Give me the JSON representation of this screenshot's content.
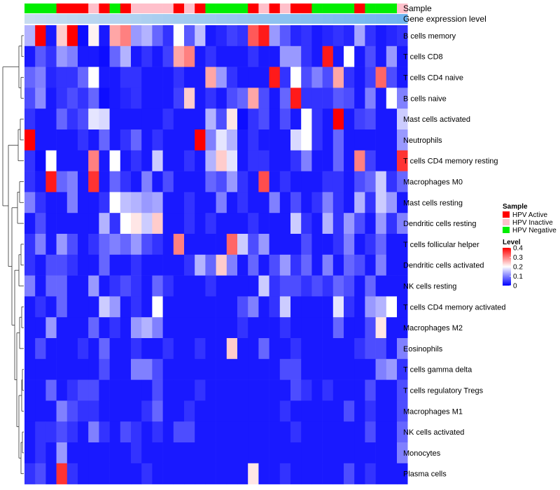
{
  "chart_data": {
    "type": "heatmap",
    "rows": [
      "B cells memory",
      "T cells CD8",
      "T cells CD4 naive",
      "B cells naive",
      "Mast cells activated",
      "Neutrophils",
      "T cells CD4 memory resting",
      "Macrophages M0",
      "Mast cells resting",
      "Dendritic cells resting",
      "T cells follicular helper",
      "Dendritic cells activated",
      "NK cells resting",
      "T cells CD4 memory activated",
      "Macrophages M2",
      "Eosinophils",
      "T cells gamma delta",
      "T cells regulatory  Tregs",
      "Macrophages M1",
      "NK cells activated",
      "Monocytes",
      "Plasma cells"
    ],
    "n_columns": 36,
    "annotation_rows": [
      "Sample",
      "Gene expression level"
    ],
    "sample_annotation": [
      "HPV Negative",
      "HPV Negative",
      "HPV Negative",
      "HPV Active",
      "HPV Active",
      "HPV Active",
      "HPV Inactive",
      "HPV Active",
      "HPV Negative",
      "HPV Active",
      "HPV Inactive",
      "HPV Inactive",
      "HPV Inactive",
      "HPV Inactive",
      "HPV Active",
      "HPV Inactive",
      "HPV Active",
      "HPV Negative",
      "HPV Negative",
      "HPV Negative",
      "HPV Negative",
      "HPV Active",
      "HPV Inactive",
      "HPV Active",
      "HPV Inactive",
      "HPV Active",
      "HPV Active",
      "HPV Negative",
      "HPV Negative",
      "HPV Negative",
      "HPV Negative",
      "HPV Active",
      "HPV Negative",
      "HPV Negative",
      "HPV Negative",
      "HPV Inactive"
    ],
    "legend": {
      "sample_title": "Sample",
      "sample_entries": [
        {
          "label": "HPV Active",
          "color": "#ff0000"
        },
        {
          "label": "HPV Inactive",
          "color": "#ffc0cb"
        },
        {
          "label": "HPV Negative",
          "color": "#00ee00"
        }
      ],
      "level_title": "Level",
      "level_ticks": [
        "0.4",
        "0.3",
        "0.2",
        "0.1",
        "0"
      ],
      "placement": "right"
    },
    "color_scale": {
      "low": "#0000ff",
      "mid": "#ffffff",
      "high": "#ff0000",
      "min": 0,
      "max": 0.4
    },
    "values": [
      [
        0.14,
        0.4,
        0.02,
        0.24,
        0.4,
        0.01,
        0.21,
        0.02,
        0.27,
        0.3,
        0.12,
        0.14,
        0.08,
        0.04,
        0.2,
        0.07,
        0.15,
        0.02,
        0.03,
        0.05,
        0.04,
        0.33,
        0.38,
        0.12,
        0.07,
        0.03,
        0.04,
        0.02,
        0.03,
        0.04,
        0.03,
        0.13,
        0.04,
        0.02,
        0.03,
        0.04
      ],
      [
        0.02,
        0.07,
        0.04,
        0.12,
        0.1,
        0.02,
        0.02,
        0.01,
        0.08,
        0.14,
        0.02,
        0.04,
        0.02,
        0.05,
        0.27,
        0.3,
        0.02,
        0.04,
        0.02,
        0.02,
        0.02,
        0.04,
        0.02,
        0.02,
        0.12,
        0.12,
        0.04,
        0.02,
        0.38,
        0.02,
        0.2,
        0.02,
        0.06,
        0.02,
        0.12,
        0.02
      ],
      [
        0.08,
        0.1,
        0.03,
        0.04,
        0.04,
        0.08,
        0.2,
        0.02,
        0.02,
        0.04,
        0.04,
        0.02,
        0.02,
        0.02,
        0.04,
        0.02,
        0.02,
        0.27,
        0.12,
        0.04,
        0.02,
        0.02,
        0.02,
        0.38,
        0.04,
        0.2,
        0.06,
        0.1,
        0.06,
        0.27,
        0.04,
        0.02,
        0.05,
        0.32,
        0.06,
        0.02
      ],
      [
        0.06,
        0.11,
        0.02,
        0.04,
        0.06,
        0.04,
        0.08,
        0.01,
        0.02,
        0.03,
        0.04,
        0.02,
        0.02,
        0.02,
        0.05,
        0.24,
        0.02,
        0.04,
        0.02,
        0.06,
        0.08,
        0.27,
        0.06,
        0.02,
        0.08,
        0.38,
        0.04,
        0.04,
        0.04,
        0.07,
        0.06,
        0.02,
        0.1,
        0.02,
        0.2,
        0.1
      ],
      [
        0.04,
        0.02,
        0.02,
        0.08,
        0.04,
        0.06,
        0.18,
        0.17,
        0.02,
        0.02,
        0.02,
        0.02,
        0.02,
        0.04,
        0.02,
        0.02,
        0.02,
        0.14,
        0.06,
        0.22,
        0.01,
        0.04,
        0.06,
        0.02,
        0.06,
        0.02,
        0.2,
        0.04,
        0.02,
        0.4,
        0.02,
        0.05,
        0.06,
        0.02,
        0.02,
        0.16
      ],
      [
        0.4,
        0.02,
        0.02,
        0.02,
        0.02,
        0.04,
        0.02,
        0.08,
        0.02,
        0.04,
        0.08,
        0.02,
        0.04,
        0.02,
        0.02,
        0.02,
        0.4,
        0.1,
        0.18,
        0.14,
        0.02,
        0.04,
        0.02,
        0.02,
        0.02,
        0.17,
        0.2,
        0.04,
        0.02,
        0.08,
        0.02,
        0.02,
        0.02,
        0.02,
        0.02,
        0.12
      ],
      [
        0.04,
        0.01,
        0.2,
        0.02,
        0.02,
        0.02,
        0.3,
        0.02,
        0.2,
        0.02,
        0.04,
        0.02,
        0.16,
        0.02,
        0.02,
        0.04,
        0.02,
        0.14,
        0.24,
        0.18,
        0.02,
        0.04,
        0.04,
        0.02,
        0.02,
        0.04,
        0.1,
        0.02,
        0.02,
        0.08,
        0.02,
        0.3,
        0.05,
        0.02,
        0.02,
        0.36
      ],
      [
        0.04,
        0.02,
        0.38,
        0.08,
        0.1,
        0.02,
        0.36,
        0.02,
        0.08,
        0.04,
        0.02,
        0.1,
        0.02,
        0.06,
        0.02,
        0.02,
        0.02,
        0.08,
        0.06,
        0.12,
        0.04,
        0.02,
        0.34,
        0.02,
        0.04,
        0.02,
        0.02,
        0.02,
        0.04,
        0.04,
        0.02,
        0.06,
        0.08,
        0.16,
        0.04,
        0.08
      ],
      [
        0.1,
        0.04,
        0.02,
        0.02,
        0.1,
        0.02,
        0.02,
        0.04,
        0.2,
        0.15,
        0.14,
        0.12,
        0.13,
        0.02,
        0.02,
        0.04,
        0.02,
        0.02,
        0.1,
        0.02,
        0.04,
        0.02,
        0.02,
        0.1,
        0.02,
        0.06,
        0.02,
        0.04,
        0.1,
        0.04,
        0.02,
        0.14,
        0.04,
        0.16,
        0.12,
        0.02
      ],
      [
        0.02,
        0.06,
        0.02,
        0.02,
        0.02,
        0.02,
        0.02,
        0.14,
        0.04,
        0.2,
        0.22,
        0.16,
        0.24,
        0.02,
        0.02,
        0.04,
        0.02,
        0.04,
        0.02,
        0.02,
        0.02,
        0.04,
        0.02,
        0.02,
        0.02,
        0.16,
        0.04,
        0.02,
        0.14,
        0.04,
        0.12,
        0.06,
        0.02,
        0.12,
        0.04,
        0.1
      ],
      [
        0.04,
        0.1,
        0.02,
        0.12,
        0.06,
        0.02,
        0.04,
        0.08,
        0.1,
        0.08,
        0.12,
        0.06,
        0.04,
        0.02,
        0.3,
        0.02,
        0.02,
        0.02,
        0.02,
        0.32,
        0.16,
        0.06,
        0.12,
        0.02,
        0.02,
        0.02,
        0.06,
        0.02,
        0.02,
        0.04,
        0.1,
        0.02,
        0.04,
        0.08,
        0.02,
        0.02
      ],
      [
        0.04,
        0.02,
        0.06,
        0.06,
        0.04,
        0.02,
        0.02,
        0.08,
        0.02,
        0.02,
        0.04,
        0.02,
        0.02,
        0.02,
        0.02,
        0.04,
        0.14,
        0.08,
        0.24,
        0.1,
        0.02,
        0.08,
        0.02,
        0.06,
        0.12,
        0.04,
        0.08,
        0.02,
        0.1,
        0.02,
        0.08,
        0.06,
        0.02,
        0.1,
        0.02,
        0.02
      ],
      [
        0.1,
        0.02,
        0.08,
        0.08,
        0.02,
        0.02,
        0.12,
        0.02,
        0.04,
        0.06,
        0.04,
        0.02,
        0.08,
        0.04,
        0.02,
        0.02,
        0.02,
        0.04,
        0.02,
        0.02,
        0.02,
        0.02,
        0.16,
        0.04,
        0.06,
        0.06,
        0.04,
        0.06,
        0.04,
        0.08,
        0.06,
        0.02,
        0.08,
        0.02,
        0.02,
        0.02
      ],
      [
        0.02,
        0.04,
        0.02,
        0.08,
        0.02,
        0.02,
        0.02,
        0.16,
        0.12,
        0.02,
        0.04,
        0.02,
        0.2,
        0.02,
        0.02,
        0.02,
        0.02,
        0.02,
        0.02,
        0.02,
        0.06,
        0.1,
        0.02,
        0.04,
        0.16,
        0.02,
        0.02,
        0.02,
        0.02,
        0.18,
        0.04,
        0.02,
        0.12,
        0.14,
        0.2,
        0.02
      ],
      [
        0.02,
        0.02,
        0.12,
        0.02,
        0.02,
        0.02,
        0.08,
        0.02,
        0.04,
        0.02,
        0.12,
        0.14,
        0.1,
        0.02,
        0.02,
        0.02,
        0.02,
        0.02,
        0.02,
        0.02,
        0.04,
        0.02,
        0.02,
        0.02,
        0.04,
        0.02,
        0.02,
        0.02,
        0.02,
        0.08,
        0.02,
        0.02,
        0.06,
        0.22,
        0.02,
        0.02
      ],
      [
        0.02,
        0.06,
        0.02,
        0.02,
        0.02,
        0.04,
        0.02,
        0.08,
        0.02,
        0.02,
        0.04,
        0.02,
        0.02,
        0.04,
        0.02,
        0.02,
        0.04,
        0.02,
        0.02,
        0.24,
        0.02,
        0.02,
        0.08,
        0.02,
        0.02,
        0.04,
        0.02,
        0.02,
        0.02,
        0.02,
        0.02,
        0.04,
        0.06,
        0.06,
        0.02,
        0.1
      ],
      [
        0.02,
        0.02,
        0.02,
        0.02,
        0.02,
        0.02,
        0.02,
        0.06,
        0.02,
        0.02,
        0.1,
        0.1,
        0.06,
        0.02,
        0.02,
        0.02,
        0.02,
        0.02,
        0.02,
        0.02,
        0.02,
        0.02,
        0.02,
        0.02,
        0.06,
        0.06,
        0.02,
        0.02,
        0.02,
        0.02,
        0.02,
        0.02,
        0.02,
        0.1,
        0.12,
        0.04
      ],
      [
        0.02,
        0.02,
        0.08,
        0.02,
        0.04,
        0.06,
        0.06,
        0.02,
        0.02,
        0.02,
        0.02,
        0.02,
        0.06,
        0.02,
        0.02,
        0.02,
        0.04,
        0.02,
        0.02,
        0.02,
        0.02,
        0.02,
        0.02,
        0.02,
        0.02,
        0.06,
        0.04,
        0.02,
        0.04,
        0.02,
        0.02,
        0.02,
        0.06,
        0.02,
        0.02,
        0.06
      ],
      [
        0.02,
        0.02,
        0.02,
        0.1,
        0.06,
        0.04,
        0.04,
        0.02,
        0.02,
        0.02,
        0.02,
        0.04,
        0.08,
        0.02,
        0.02,
        0.04,
        0.02,
        0.02,
        0.02,
        0.02,
        0.02,
        0.02,
        0.02,
        0.02,
        0.04,
        0.02,
        0.02,
        0.02,
        0.02,
        0.02,
        0.06,
        0.02,
        0.04,
        0.02,
        0.02,
        0.06
      ],
      [
        0.02,
        0.04,
        0.04,
        0.06,
        0.04,
        0.02,
        0.1,
        0.04,
        0.02,
        0.06,
        0.04,
        0.02,
        0.04,
        0.02,
        0.06,
        0.06,
        0.02,
        0.02,
        0.02,
        0.02,
        0.02,
        0.02,
        0.02,
        0.02,
        0.02,
        0.04,
        0.02,
        0.02,
        0.02,
        0.02,
        0.02,
        0.02,
        0.06,
        0.02,
        0.02,
        0.08
      ],
      [
        0.02,
        0.04,
        0.02,
        0.12,
        0.02,
        0.02,
        0.02,
        0.02,
        0.02,
        0.02,
        0.04,
        0.02,
        0.02,
        0.02,
        0.02,
        0.02,
        0.02,
        0.02,
        0.02,
        0.02,
        0.02,
        0.02,
        0.02,
        0.02,
        0.02,
        0.02,
        0.02,
        0.02,
        0.02,
        0.02,
        0.02,
        0.02,
        0.02,
        0.02,
        0.02,
        0.1
      ],
      [
        0.04,
        0.06,
        0.02,
        0.36,
        0.04,
        0.02,
        0.02,
        0.02,
        0.02,
        0.02,
        0.02,
        0.04,
        0.02,
        0.02,
        0.02,
        0.02,
        0.02,
        0.02,
        0.02,
        0.02,
        0.02,
        0.22,
        0.02,
        0.02,
        0.04,
        0.02,
        0.02,
        0.02,
        0.02,
        0.02,
        0.06,
        0.02,
        0.04,
        0.02,
        0.02,
        0.02
      ]
    ]
  }
}
